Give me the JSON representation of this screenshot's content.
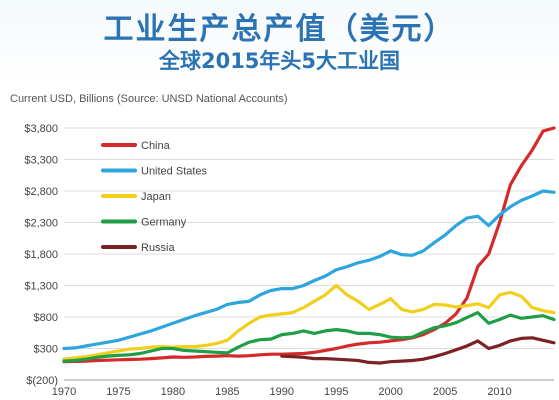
{
  "header": {
    "title": "工业生产总产值（美元）",
    "subtitle": "全球2015年头5大工业国"
  },
  "chart_data": {
    "type": "line",
    "title": "工业生产总产值（美元）",
    "subtitle": "全球2015年头5大工业国",
    "ylabel": "Current USD, Billions (Source: UNSD  National Accounts)",
    "xlabel": "",
    "ylim": [
      -200,
      3800
    ],
    "xlim": [
      1970,
      2015
    ],
    "ytick_labels": [
      "$(200)",
      "$300",
      "$800",
      "$1,300",
      "$1,800",
      "$2,300",
      "$2,800",
      "$3,300",
      "$3,800"
    ],
    "ytick_values": [
      -200,
      300,
      800,
      1300,
      1800,
      2300,
      2800,
      3300,
      3800
    ],
    "xticks": [
      1970,
      1975,
      1980,
      1985,
      1990,
      1995,
      2000,
      2005,
      2010
    ],
    "grid": "horizontal",
    "legend_position": "top-left",
    "x": [
      1970,
      1971,
      1972,
      1973,
      1974,
      1975,
      1976,
      1977,
      1978,
      1979,
      1980,
      1981,
      1982,
      1983,
      1984,
      1985,
      1986,
      1987,
      1988,
      1989,
      1990,
      1991,
      1992,
      1993,
      1994,
      1995,
      1996,
      1997,
      1998,
      1999,
      2000,
      2001,
      2002,
      2003,
      2004,
      2005,
      2006,
      2007,
      2008,
      2009,
      2010,
      2011,
      2012,
      2013,
      2014,
      2015
    ],
    "series": [
      {
        "name": "China",
        "color": "#d42a2a",
        "values": [
          90,
          95,
          100,
          110,
          115,
          120,
          125,
          130,
          140,
          150,
          165,
          160,
          165,
          175,
          180,
          185,
          180,
          185,
          200,
          210,
          210,
          215,
          220,
          240,
          270,
          300,
          340,
          370,
          390,
          400,
          420,
          440,
          470,
          520,
          600,
          700,
          850,
          1100,
          1600,
          1800,
          2300,
          2900,
          3200,
          3450,
          3750,
          3800
        ]
      },
      {
        "name": "United States",
        "color": "#2ca6dc",
        "values": [
          300,
          310,
          340,
          370,
          400,
          430,
          480,
          530,
          580,
          640,
          700,
          760,
          820,
          870,
          920,
          1000,
          1030,
          1050,
          1150,
          1220,
          1250,
          1250,
          1300,
          1380,
          1450,
          1550,
          1600,
          1660,
          1700,
          1760,
          1850,
          1790,
          1780,
          1850,
          1980,
          2100,
          2250,
          2370,
          2400,
          2250,
          2420,
          2550,
          2650,
          2720,
          2800,
          2780
        ]
      },
      {
        "name": "Japan",
        "color": "#f2cf1b",
        "values": [
          130,
          150,
          170,
          200,
          230,
          260,
          290,
          300,
          320,
          330,
          320,
          330,
          330,
          350,
          380,
          430,
          580,
          700,
          800,
          830,
          850,
          870,
          950,
          1050,
          1150,
          1300,
          1150,
          1050,
          920,
          1000,
          1090,
          920,
          880,
          920,
          1000,
          990,
          960,
          980,
          1010,
          950,
          1150,
          1190,
          1130,
          950,
          900,
          870
        ]
      },
      {
        "name": "Germany",
        "color": "#1f9e48",
        "values": [
          100,
          110,
          130,
          160,
          180,
          190,
          200,
          220,
          260,
          300,
          300,
          270,
          260,
          250,
          240,
          230,
          320,
          400,
          440,
          450,
          520,
          540,
          580,
          540,
          580,
          600,
          580,
          540,
          540,
          520,
          480,
          470,
          480,
          560,
          630,
          660,
          710,
          790,
          870,
          700,
          760,
          830,
          780,
          800,
          820,
          760
        ]
      },
      {
        "name": "Russia",
        "color": "#7b2324",
        "values": [
          null,
          null,
          null,
          null,
          null,
          null,
          null,
          null,
          null,
          null,
          null,
          null,
          null,
          null,
          null,
          null,
          null,
          null,
          null,
          null,
          180,
          170,
          160,
          140,
          140,
          130,
          120,
          110,
          80,
          70,
          90,
          100,
          110,
          130,
          170,
          220,
          280,
          340,
          420,
          300,
          350,
          420,
          460,
          470,
          430,
          390
        ]
      }
    ]
  }
}
